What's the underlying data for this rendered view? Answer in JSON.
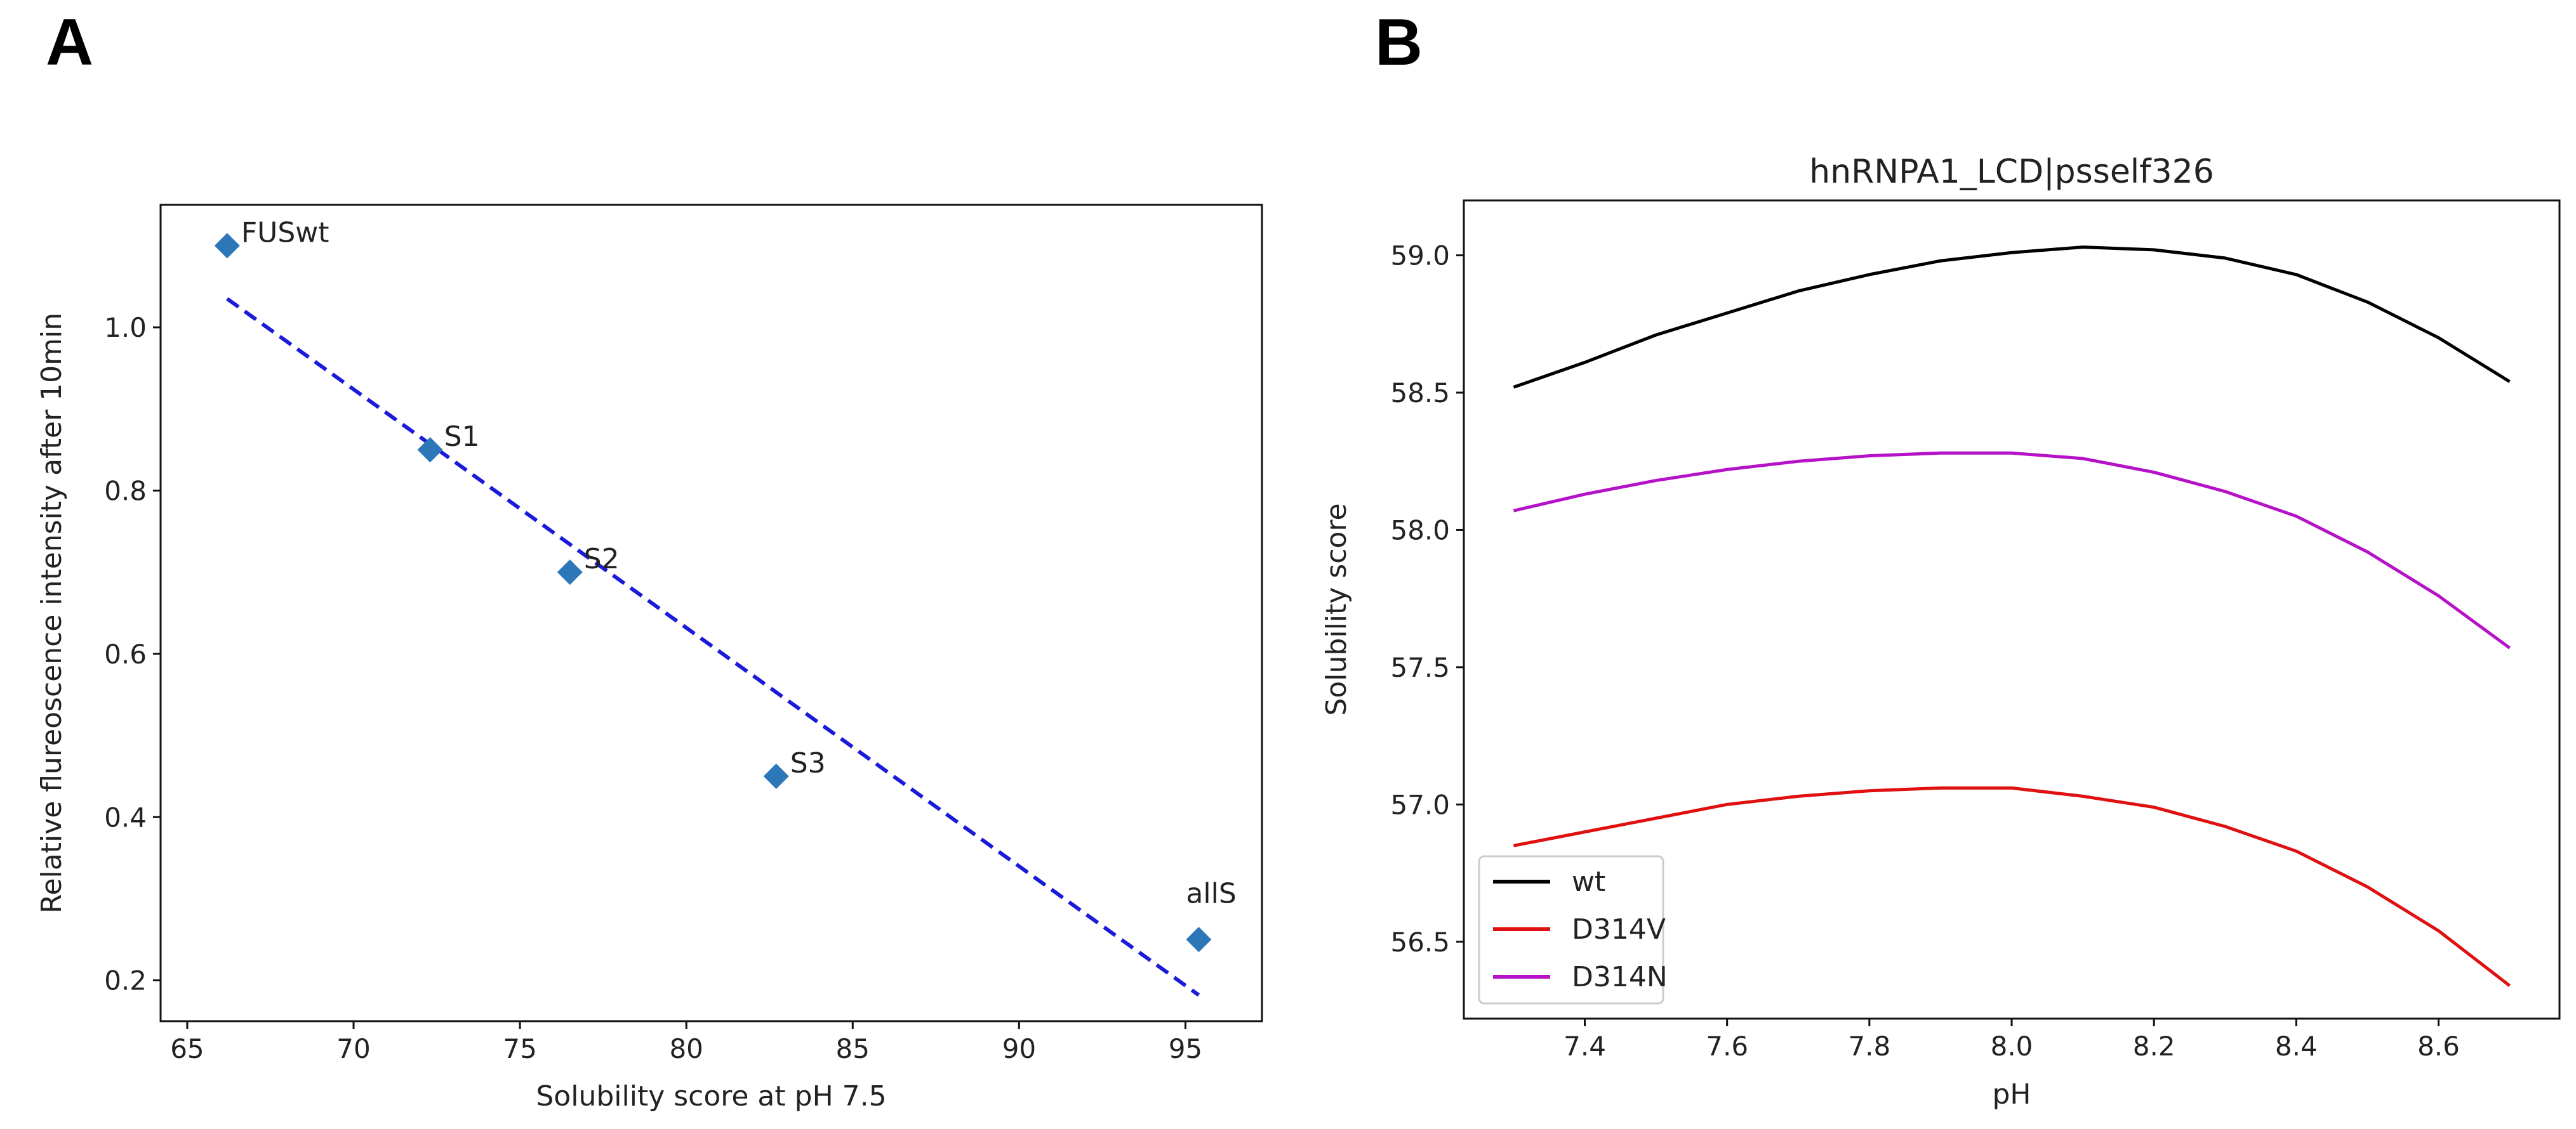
{
  "panels": [
    {
      "letter": "A"
    },
    {
      "letter": "B"
    }
  ],
  "chart_data": [
    {
      "type": "scatter",
      "title": "",
      "xlabel": "Solubility score at pH 7.5",
      "ylabel": "Relative flureoscence intensity after 10min",
      "xlim": [
        64.2,
        97.3
      ],
      "ylim": [
        0.15,
        1.15
      ],
      "xticks": [
        65,
        70,
        75,
        80,
        85,
        90,
        95
      ],
      "yticks": [
        0.2,
        0.4,
        0.6,
        0.8,
        1.0
      ],
      "xtick_labels": [
        "65",
        "70",
        "75",
        "80",
        "85",
        "90",
        "95"
      ],
      "ytick_labels": [
        "0.2",
        "0.4",
        "0.6",
        "0.8",
        "1.0"
      ],
      "grid": false,
      "points": [
        {
          "label": "FUSwt",
          "x": 66.2,
          "y": 1.1
        },
        {
          "label": "S1",
          "x": 72.3,
          "y": 0.85
        },
        {
          "label": "S2",
          "x": 76.5,
          "y": 0.7
        },
        {
          "label": "S3",
          "x": 82.7,
          "y": 0.45
        },
        {
          "label": "allS",
          "x": 95.4,
          "y": 0.25
        }
      ],
      "fit_line": {
        "x": [
          66.2,
          95.4
        ],
        "y": [
          1.035,
          0.182
        ],
        "style": "dashed",
        "color": "#1a1adb"
      },
      "marker_color": "#2b77b8"
    },
    {
      "type": "line",
      "title": "hnRNPA1_LCD|psself326",
      "xlabel": "pH",
      "ylabel": "Solubility score",
      "xlim": [
        7.23,
        8.77
      ],
      "ylim": [
        56.22,
        59.2
      ],
      "xticks": [
        7.4,
        7.6,
        7.8,
        8.0,
        8.2,
        8.4,
        8.6
      ],
      "yticks": [
        56.5,
        57.0,
        57.5,
        58.0,
        58.5,
        59.0
      ],
      "xtick_labels": [
        "7.4",
        "7.6",
        "7.8",
        "8.0",
        "8.2",
        "8.4",
        "8.6"
      ],
      "ytick_labels": [
        "56.5",
        "57.0",
        "57.5",
        "58.0",
        "58.5",
        "59.0"
      ],
      "grid": false,
      "legend_position": "lower-left",
      "x": [
        7.3,
        7.4,
        7.5,
        7.6,
        7.7,
        7.8,
        7.9,
        8.0,
        8.1,
        8.2,
        8.3,
        8.4,
        8.5,
        8.6,
        8.7
      ],
      "series": [
        {
          "name": "wt",
          "color": "#000000",
          "values": [
            58.52,
            58.61,
            58.71,
            58.79,
            58.87,
            58.93,
            58.98,
            59.01,
            59.03,
            59.02,
            58.99,
            58.93,
            58.83,
            58.7,
            58.54
          ]
        },
        {
          "name": "D314V",
          "color": "#e01010",
          "values": [
            56.85,
            56.9,
            56.95,
            57.0,
            57.03,
            57.05,
            57.06,
            57.06,
            57.03,
            56.99,
            56.92,
            56.83,
            56.7,
            56.54,
            56.34
          ]
        },
        {
          "name": "D314N",
          "color": "#b512c8",
          "values": [
            58.07,
            58.13,
            58.18,
            58.22,
            58.25,
            58.27,
            58.28,
            58.28,
            58.26,
            58.21,
            58.14,
            58.05,
            57.92,
            57.76,
            57.57
          ]
        }
      ]
    }
  ]
}
